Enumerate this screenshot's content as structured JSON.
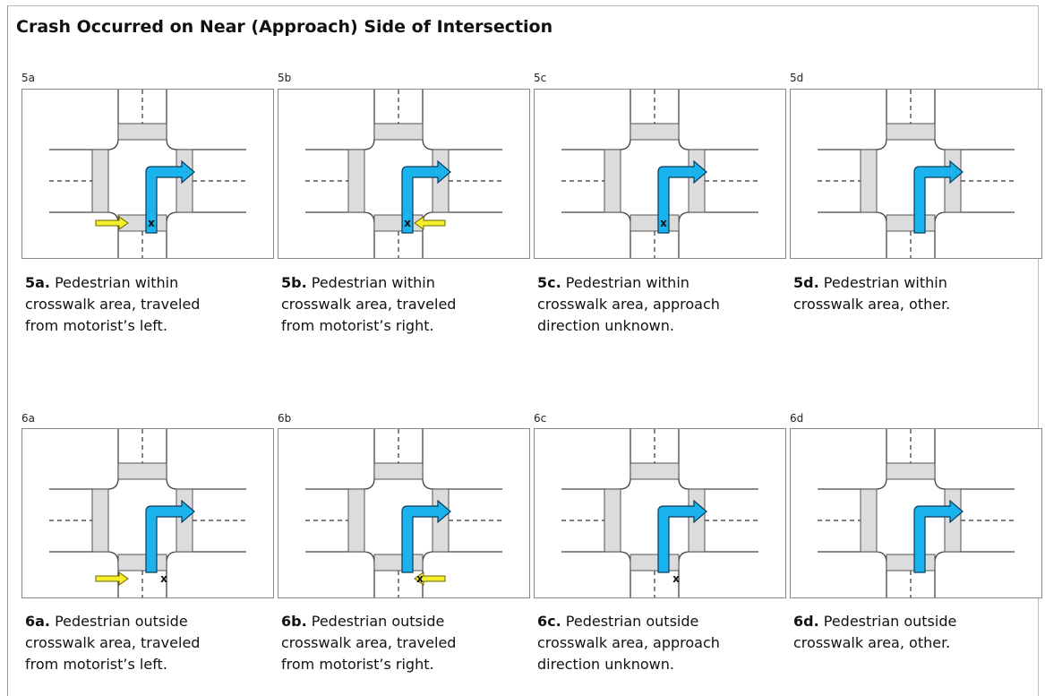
{
  "title": "Crash Occurred on Near (Approach) Side of Intersection",
  "panels": [
    {
      "id": "5a",
      "bold": "5a.",
      "text": " Pedestrian within crosswalk area, traveled from motorist’s left.",
      "marker": "x"
    },
    {
      "id": "5b",
      "bold": "5b.",
      "text": " Pedestrian within crosswalk area, traveled from motorist’s right.",
      "marker": "x"
    },
    {
      "id": "5c",
      "bold": "5c.",
      "text": " Pedestrian within crosswalk area, approach direction unknown.",
      "marker": "x"
    },
    {
      "id": "5d",
      "bold": "5d.",
      "text": " Pedestrian within crosswalk area, other."
    },
    {
      "id": "6a",
      "bold": "6a.",
      "text": " Pedestrian outside crosswalk area, traveled from motorist’s left.",
      "marker": "x"
    },
    {
      "id": "6b",
      "bold": "6b.",
      "text": " Pedestrian outside crosswalk area, traveled from motorist’s right.",
      "marker": "x"
    },
    {
      "id": "6c",
      "bold": "6c.",
      "text": " Pedestrian outside crosswalk area, approach direction unknown.",
      "marker": "x"
    },
    {
      "id": "6d",
      "bold": "6d.",
      "text": " Pedestrian outside crosswalk area, other."
    }
  ]
}
